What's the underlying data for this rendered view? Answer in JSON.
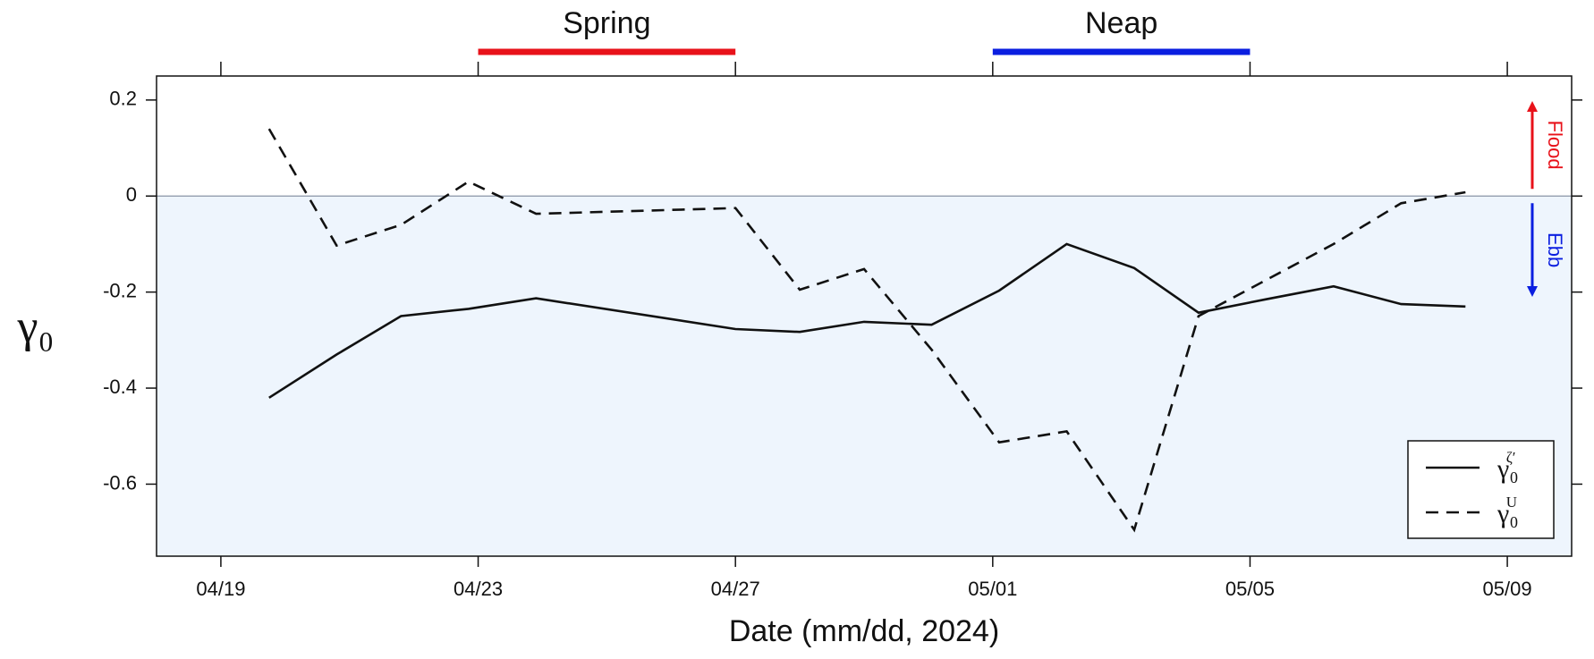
{
  "chart_data": {
    "type": "line",
    "xlabel": "Date (mm/dd, 2024)",
    "ylabel": "γ₀",
    "x": [
      110.75,
      111.8,
      112.8,
      113.85,
      114.9,
      118,
      119,
      120,
      121.05,
      122.1,
      123.15,
      124.2,
      125.2,
      126.25,
      127.3,
      128.35,
      129.35
    ],
    "series": [
      {
        "name": "γ₀ζ′",
        "color": "#111111",
        "dash": false,
        "values": [
          -0.42,
          -0.33,
          -0.25,
          -0.235,
          -0.213,
          -0.277,
          -0.283,
          -0.262,
          -0.268,
          -0.197,
          -0.1,
          -0.15,
          -0.243,
          -0.215,
          -0.188,
          -0.225,
          -0.23
        ]
      },
      {
        "name": "γ₀U",
        "color": "#111111",
        "dash": true,
        "values": [
          0.14,
          -0.103,
          -0.06,
          0.03,
          -0.037,
          -0.025,
          -0.195,
          -0.152,
          -0.32,
          -0.513,
          -0.49,
          -0.695,
          -0.25,
          -0.175,
          -0.1,
          -0.015,
          0.008
        ]
      }
    ],
    "xlim": [
      109,
      131
    ],
    "xticks": [
      {
        "value": 110,
        "label": "04/19"
      },
      {
        "value": 114,
        "label": "04/23"
      },
      {
        "value": 118,
        "label": "04/27"
      },
      {
        "value": 122,
        "label": "05/01"
      },
      {
        "value": 126,
        "label": "05/05"
      },
      {
        "value": 130,
        "label": "05/09"
      }
    ],
    "ylim": [
      -0.75,
      0.25
    ],
    "yticks": [
      -0.6,
      -0.4,
      -0.2,
      0,
      0.2
    ],
    "shade_below": {
      "y": 0,
      "color": "#eef5fd"
    },
    "periods": [
      {
        "label": "Spring",
        "start": 114,
        "end": 118,
        "color": "#e8121a"
      },
      {
        "label": "Neap",
        "start": 122,
        "end": 126,
        "color": "#0a1ee0"
      }
    ],
    "directions": [
      {
        "label": "Flood",
        "color": "#e8121a"
      },
      {
        "label": "Ebb",
        "color": "#0a1ee0"
      }
    ],
    "legend": "lower right"
  }
}
